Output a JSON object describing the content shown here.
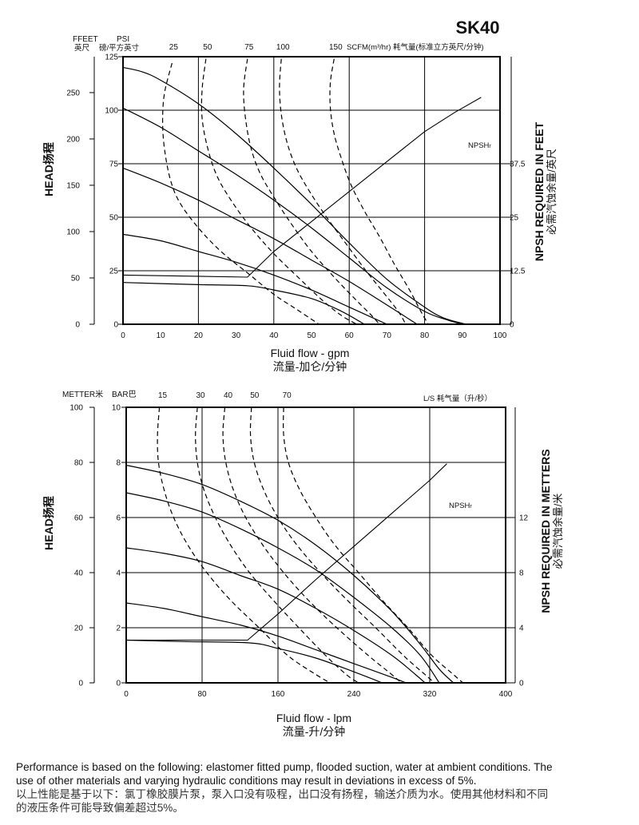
{
  "model": "SK40",
  "chart_data": [
    {
      "type": "line",
      "x_axis": {
        "label": "Fluid flow - gpm",
        "label_cn": "流量-加仑/分钟",
        "range": [
          0,
          100
        ],
        "ticks": [
          0,
          10,
          20,
          30,
          40,
          50,
          60,
          70,
          80,
          90,
          100
        ]
      },
      "y_axis_feet": {
        "title": "HEAD扬程",
        "unit": "FFEET",
        "unit_cn": "英尺",
        "range": [
          0,
          288.75
        ],
        "ticks": [
          0,
          50,
          100,
          150,
          200,
          250
        ]
      },
      "y_axis_psi": {
        "unit": "PSI",
        "unit_cn": "磅/平方英寸",
        "range": [
          0,
          125
        ],
        "ticks": [
          0,
          25,
          50,
          75,
          100,
          125
        ]
      },
      "y_axis_npsh": {
        "title": "NPSH REQUIRED IN FEET",
        "title_cn": "必需汽蚀余量/英尺",
        "range": [
          0,
          62.5
        ],
        "ticks": [
          "0",
          "12.5",
          "25",
          "37.5"
        ]
      },
      "air_axis": {
        "label": "SCFM(m³/hr)",
        "label_cn": "耗气量(标准立方英尺/分钟)",
        "ticks": [
          "25",
          "50",
          "75",
          "100",
          "150"
        ]
      },
      "npsh_label": "NPSH",
      "npsh_label_sub": "r",
      "performance_curves_psi": [
        {
          "points": [
            [
              0,
              120
            ],
            [
              5,
              118
            ],
            [
              10,
              114
            ],
            [
              20,
              103
            ],
            [
              30,
              89
            ],
            [
              40,
              73
            ],
            [
              50,
              56
            ],
            [
              60,
              38
            ],
            [
              70,
              21
            ],
            [
              80,
              8
            ],
            [
              85,
              3
            ],
            [
              91,
              0
            ]
          ]
        },
        {
          "points": [
            [
              0,
              101
            ],
            [
              10,
              92
            ],
            [
              20,
              81
            ],
            [
              30,
              70
            ],
            [
              40,
              58
            ],
            [
              50,
              45
            ],
            [
              60,
              31
            ],
            [
              70,
              17
            ],
            [
              80,
              6
            ],
            [
              86,
              2
            ],
            [
              90,
              0
            ]
          ]
        },
        {
          "points": [
            [
              0,
              73
            ],
            [
              10,
              66
            ],
            [
              20,
              58
            ],
            [
              30,
              49
            ],
            [
              40,
              40
            ],
            [
              50,
              30
            ],
            [
              60,
              20
            ],
            [
              70,
              9
            ],
            [
              78,
              0
            ]
          ]
        },
        {
          "points": [
            [
              0,
              42
            ],
            [
              10,
              39
            ],
            [
              20,
              34
            ],
            [
              30,
              29
            ],
            [
              40,
              23
            ],
            [
              50,
              16
            ],
            [
              60,
              8
            ],
            [
              65,
              4
            ],
            [
              70,
              0
            ]
          ]
        },
        {
          "points": [
            [
              0,
              19.5
            ],
            [
              20,
              18.5
            ],
            [
              33,
              18
            ],
            [
              40,
              16
            ],
            [
              50,
              12
            ],
            [
              58,
              6
            ],
            [
              64,
              0
            ]
          ]
        }
      ],
      "air_curves_psi": [
        {
          "points": [
            [
              13,
              122
            ],
            [
              11,
              108
            ],
            [
              10.5,
              95
            ],
            [
              11,
              82
            ],
            [
              12.5,
              68
            ],
            [
              15,
              57
            ],
            [
              20,
              45
            ],
            [
              26,
              34
            ],
            [
              33,
              24
            ],
            [
              40,
              14
            ],
            [
              46,
              7
            ],
            [
              52,
              0
            ]
          ]
        },
        {
          "points": [
            [
              22,
              124
            ],
            [
              21,
              110
            ],
            [
              21,
              96
            ],
            [
              22.5,
              82
            ],
            [
              25,
              69
            ],
            [
              29,
              57
            ],
            [
              34,
              45
            ],
            [
              40,
              33
            ],
            [
              47,
              21
            ],
            [
              53,
              11
            ],
            [
              58,
              4
            ],
            [
              62,
              0
            ]
          ]
        },
        {
          "points": [
            [
              33,
              124
            ],
            [
              32,
              110
            ],
            [
              32.5,
              96
            ],
            [
              34,
              82
            ],
            [
              36.5,
              70
            ],
            [
              40.5,
              58
            ],
            [
              45,
              46
            ],
            [
              50,
              34
            ],
            [
              56,
              22
            ],
            [
              62,
              11
            ],
            [
              66,
              4
            ],
            [
              68,
              0
            ]
          ]
        },
        {
          "points": [
            [
              42,
              124
            ],
            [
              41.5,
              111
            ],
            [
              42,
              98
            ],
            [
              43.5,
              85
            ],
            [
              46,
              73
            ],
            [
              49.5,
              62
            ],
            [
              54,
              50
            ],
            [
              59,
              38
            ],
            [
              64,
              26
            ],
            [
              69,
              15
            ],
            [
              73,
              6
            ],
            [
              75,
              0
            ]
          ]
        },
        {
          "points": [
            [
              56,
              124
            ],
            [
              55,
              113
            ],
            [
              55,
              101
            ],
            [
              56,
              89
            ],
            [
              58,
              77
            ],
            [
              60.5,
              65
            ],
            [
              64,
              53
            ],
            [
              68,
              41
            ],
            [
              72,
              28
            ],
            [
              76,
              16
            ],
            [
              79,
              6
            ],
            [
              81,
              0
            ]
          ]
        }
      ],
      "npsh_curve_ft": [
        [
          0,
          11.5
        ],
        [
          33,
          11
        ],
        [
          40,
          17
        ],
        [
          50,
          24
        ],
        [
          60,
          31
        ],
        [
          70,
          38
        ],
        [
          80,
          45
        ],
        [
          88,
          49.5
        ],
        [
          95,
          53
        ]
      ]
    },
    {
      "type": "line",
      "x_axis": {
        "label": "Fluid flow - lpm",
        "label_cn": "流量-升/分钟",
        "range": [
          0,
          400
        ],
        "ticks": [
          0,
          80,
          160,
          240,
          320,
          400
        ]
      },
      "y_axis_meters": {
        "title": "HEAD扬程",
        "unit": "METTER",
        "unit_cn": "米",
        "range": [
          0,
          100
        ],
        "ticks": [
          0,
          20,
          40,
          60,
          80,
          100
        ]
      },
      "y_axis_bar": {
        "unit": "BAR",
        "unit_cn": "巴",
        "range": [
          0,
          10
        ],
        "ticks": [
          0,
          2,
          4,
          6,
          8,
          10
        ]
      },
      "y_axis_npsh": {
        "title": "NPSH REQUIRED IN METTERS",
        "title_cn": "必需汽蚀余量/米",
        "range": [
          0,
          20
        ],
        "ticks": [
          "0",
          "4",
          "8",
          "12"
        ]
      },
      "air_axis": {
        "label": "L/S",
        "label_cn": "耗气量（升/秒）",
        "ticks": [
          "15",
          "30",
          "40",
          "50",
          "70"
        ]
      },
      "npsh_label": "NPSH",
      "npsh_label_sub": "r",
      "performance_curves_bar": [
        {
          "points": [
            [
              0,
              7.9
            ],
            [
              40,
              7.6
            ],
            [
              80,
              7.2
            ],
            [
              120,
              6.6
            ],
            [
              160,
              5.9
            ],
            [
              200,
              5.0
            ],
            [
              240,
              3.9
            ],
            [
              280,
              2.6
            ],
            [
              310,
              1.4
            ],
            [
              330,
              0.5
            ],
            [
              345,
              0
            ]
          ]
        },
        {
          "points": [
            [
              0,
              6.9
            ],
            [
              40,
              6.6
            ],
            [
              80,
              6.2
            ],
            [
              120,
              5.6
            ],
            [
              160,
              4.9
            ],
            [
              200,
              4.1
            ],
            [
              240,
              3.1
            ],
            [
              280,
              2.0
            ],
            [
              310,
              1.0
            ],
            [
              330,
              0
            ]
          ]
        },
        {
          "points": [
            [
              0,
              4.9
            ],
            [
              40,
              4.7
            ],
            [
              80,
              4.4
            ],
            [
              120,
              3.9
            ],
            [
              160,
              3.4
            ],
            [
              200,
              2.7
            ],
            [
              240,
              1.9
            ],
            [
              280,
              1.0
            ],
            [
              305,
              0.3
            ],
            [
              315,
              0
            ]
          ]
        },
        {
          "points": [
            [
              0,
              2.9
            ],
            [
              40,
              2.7
            ],
            [
              80,
              2.4
            ],
            [
              120,
              2.1
            ],
            [
              160,
              1.7
            ],
            [
              200,
              1.2
            ],
            [
              240,
              0.7
            ],
            [
              280,
              0.2
            ],
            [
              295,
              0
            ]
          ]
        },
        {
          "points": [
            [
              0,
              1.55
            ],
            [
              60,
              1.5
            ],
            [
              130,
              1.45
            ],
            [
              160,
              1.25
            ],
            [
              200,
              0.9
            ],
            [
              240,
              0.4
            ],
            [
              270,
              0
            ]
          ]
        }
      ],
      "air_curves_bar": [
        {
          "points": [
            [
              35,
              10
            ],
            [
              33,
              9
            ],
            [
              34,
              8
            ],
            [
              40,
              7
            ],
            [
              50,
              6
            ],
            [
              65,
              5
            ],
            [
              85,
              4
            ],
            [
              110,
              3
            ],
            [
              140,
              2
            ],
            [
              170,
              1
            ],
            [
              200,
              0.3
            ],
            [
              215,
              0
            ]
          ]
        },
        {
          "points": [
            [
              75,
              10
            ],
            [
              73,
              9
            ],
            [
              75,
              8
            ],
            [
              82,
              7
            ],
            [
              94,
              6
            ],
            [
              110,
              5
            ],
            [
              130,
              4
            ],
            [
              155,
              3
            ],
            [
              182,
              2
            ],
            [
              210,
              1
            ],
            [
              232,
              0.3
            ],
            [
              245,
              0
            ]
          ]
        },
        {
          "points": [
            [
              104,
              10
            ],
            [
              102,
              9
            ],
            [
              105,
              8
            ],
            [
              113,
              7
            ],
            [
              126,
              6
            ],
            [
              144,
              5
            ],
            [
              166,
              4
            ],
            [
              192,
              3
            ],
            [
              222,
              2
            ],
            [
              255,
              1
            ],
            [
              280,
              0.3
            ],
            [
              290,
              0
            ]
          ]
        },
        {
          "points": [
            [
              132,
              10
            ],
            [
              131,
              9
            ],
            [
              135,
              8
            ],
            [
              145,
              7
            ],
            [
              160,
              6
            ],
            [
              180,
              5
            ],
            [
              205,
              4
            ],
            [
              233,
              3
            ],
            [
              263,
              2
            ],
            [
              292,
              1
            ],
            [
              315,
              0.3
            ],
            [
              325,
              0
            ]
          ]
        },
        {
          "points": [
            [
              166,
              10
            ],
            [
              166,
              9
            ],
            [
              171,
              8
            ],
            [
              183,
              7
            ],
            [
              200,
              6
            ],
            [
              220,
              5
            ],
            [
              245,
              4
            ],
            [
              270,
              3
            ],
            [
              297,
              2
            ],
            [
              322,
              1
            ],
            [
              345,
              0.3
            ],
            [
              355,
              0
            ]
          ]
        }
      ],
      "npsh_curve_m": [
        [
          0,
          3.1
        ],
        [
          128,
          3.1
        ],
        [
          160,
          5
        ],
        [
          200,
          7.5
        ],
        [
          240,
          9.9
        ],
        [
          280,
          12.3
        ],
        [
          320,
          14.7
        ],
        [
          338,
          15.9
        ]
      ]
    }
  ],
  "footnote": {
    "en": "Performance is based on the following: elastomer fitted pump, flooded suction, water at ambient conditions. The use of other materials and varying hydraulic conditions may result in deviations in excess of 5%.",
    "en_line1": "Performance is based on the following: elastomer fitted pump, flooded suction, water at ambient conditions. The",
    "en_line2": "use of other materials and varying hydraulic conditions may result in deviations in excess of 5%.",
    "cn_line1": "以上性能是基于以下：氯丁橡胶膜片泵，泵入口没有吸程，出口没有扬程，输送介质为水。使用其他材料和不同",
    "cn_line2": "的液压条件可能导致偏差超过5%。"
  }
}
